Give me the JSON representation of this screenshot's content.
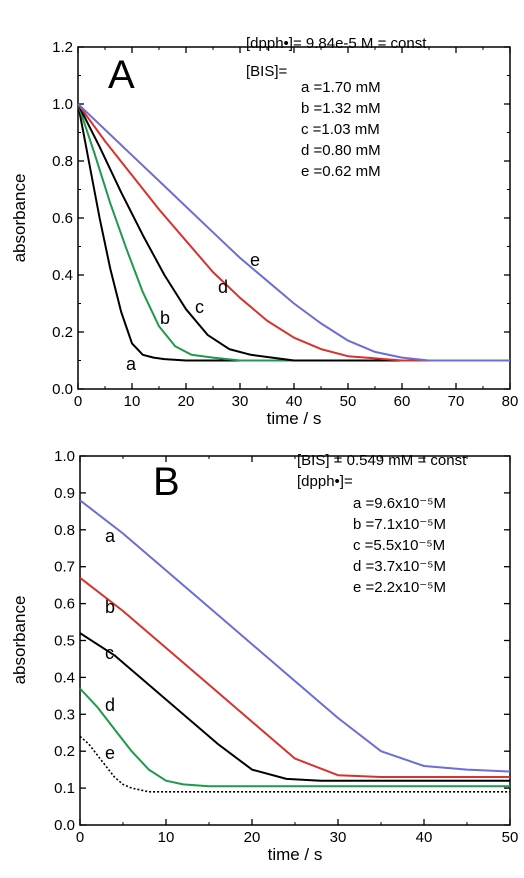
{
  "chart_data": [
    {
      "type": "line",
      "panel_label": "A",
      "xlabel": "time  / s",
      "ylabel": "absorbance",
      "xlim": [
        0,
        80
      ],
      "ylim": [
        0,
        1.2
      ],
      "xticks": [
        "0",
        "10",
        "20",
        "30",
        "40",
        "50",
        "60",
        "70",
        "80"
      ],
      "yticks": [
        "0.0",
        "0.2",
        "0.4",
        "0.6",
        "0.8",
        "1.0",
        "1.2"
      ],
      "annotations": [
        "[dpph•]= 9.84e-5 M = const",
        "[BIS]=",
        "a =1.70  mM",
        "b =1.32  mM",
        "c =1.03  mM",
        "d =0.80  mM",
        "e =0.62  mM"
      ],
      "series": [
        {
          "label": "a",
          "color": "#000000",
          "x": [
            0,
            2,
            4,
            6,
            8,
            10,
            12,
            14,
            16,
            20,
            30,
            80
          ],
          "y": [
            1.0,
            0.8,
            0.6,
            0.42,
            0.27,
            0.16,
            0.12,
            0.11,
            0.105,
            0.1,
            0.1,
            0.1
          ]
        },
        {
          "label": "b",
          "color": "#1f9a4a",
          "x": [
            0,
            3,
            6,
            9,
            12,
            15,
            18,
            21,
            25,
            30,
            40,
            80
          ],
          "y": [
            1.0,
            0.83,
            0.65,
            0.49,
            0.34,
            0.22,
            0.15,
            0.12,
            0.11,
            0.1,
            0.1,
            0.1
          ]
        },
        {
          "label": "c",
          "color": "#000000",
          "x": [
            0,
            4,
            8,
            12,
            16,
            20,
            24,
            28,
            32,
            40,
            80
          ],
          "y": [
            1.0,
            0.85,
            0.69,
            0.54,
            0.4,
            0.28,
            0.19,
            0.14,
            0.12,
            0.1,
            0.1
          ]
        },
        {
          "label": "d",
          "color": "#d8322a",
          "x": [
            0,
            5,
            10,
            15,
            20,
            25,
            30,
            35,
            40,
            45,
            50,
            60,
            80
          ],
          "y": [
            1.0,
            0.87,
            0.75,
            0.63,
            0.52,
            0.41,
            0.32,
            0.24,
            0.18,
            0.14,
            0.115,
            0.1,
            0.1
          ]
        },
        {
          "label": "e",
          "color": "#6a6ed6",
          "x": [
            0,
            5,
            10,
            15,
            20,
            25,
            30,
            35,
            40,
            45,
            50,
            55,
            60,
            65,
            70,
            80
          ],
          "y": [
            1.0,
            0.91,
            0.82,
            0.73,
            0.64,
            0.55,
            0.46,
            0.38,
            0.3,
            0.23,
            0.17,
            0.13,
            0.11,
            0.1,
            0.1,
            0.1
          ]
        }
      ]
    },
    {
      "type": "line",
      "panel_label": "B",
      "xlabel": "time  / s",
      "ylabel": "absorbance",
      "xlim": [
        0,
        50
      ],
      "ylim": [
        0,
        1.0
      ],
      "xticks": [
        "0",
        "10",
        "20",
        "30",
        "40",
        "50"
      ],
      "yticks": [
        "0.0",
        "0.1",
        "0.2",
        "0.3",
        "0.4",
        "0.5",
        "0.6",
        "0.7",
        "0.8",
        "0.9",
        "1.0"
      ],
      "annotations": [
        "[BIS] = 0.549 mM = const",
        "[dpph•]=",
        "a =9.6x10⁻⁵M",
        "b =7.1x10⁻⁵M",
        "c =5.5x10⁻⁵M",
        "d =3.7x10⁻⁵M",
        "e =2.2x10⁻⁵M"
      ],
      "series": [
        {
          "label": "a",
          "color": "#6a6ed6",
          "x": [
            0,
            5,
            10,
            15,
            20,
            25,
            30,
            35,
            40,
            45,
            50
          ],
          "y": [
            0.88,
            0.79,
            0.69,
            0.59,
            0.49,
            0.39,
            0.29,
            0.2,
            0.16,
            0.15,
            0.145
          ]
        },
        {
          "label": "b",
          "color": "#d8322a",
          "x": [
            0,
            5,
            10,
            15,
            20,
            25,
            30,
            35,
            40,
            50
          ],
          "y": [
            0.67,
            0.58,
            0.48,
            0.38,
            0.28,
            0.18,
            0.135,
            0.13,
            0.13,
            0.13
          ]
        },
        {
          "label": "c",
          "color": "#000000",
          "x": [
            0,
            4,
            8,
            12,
            16,
            20,
            24,
            28,
            32,
            40,
            50
          ],
          "y": [
            0.52,
            0.46,
            0.38,
            0.3,
            0.22,
            0.15,
            0.125,
            0.12,
            0.12,
            0.12,
            0.12
          ]
        },
        {
          "label": "d",
          "color": "#1f9a4a",
          "x": [
            0,
            2,
            4,
            6,
            8,
            10,
            12,
            15,
            20,
            30,
            50
          ],
          "y": [
            0.37,
            0.32,
            0.26,
            0.2,
            0.15,
            0.12,
            0.11,
            0.105,
            0.105,
            0.105,
            0.105
          ]
        },
        {
          "label": "e",
          "color": "#000000",
          "dashed": true,
          "x": [
            0,
            1,
            2,
            3,
            4,
            5,
            6,
            7,
            8,
            10,
            20,
            50
          ],
          "y": [
            0.24,
            0.22,
            0.19,
            0.16,
            0.13,
            0.11,
            0.1,
            0.095,
            0.09,
            0.09,
            0.09,
            0.09
          ]
        }
      ]
    }
  ]
}
